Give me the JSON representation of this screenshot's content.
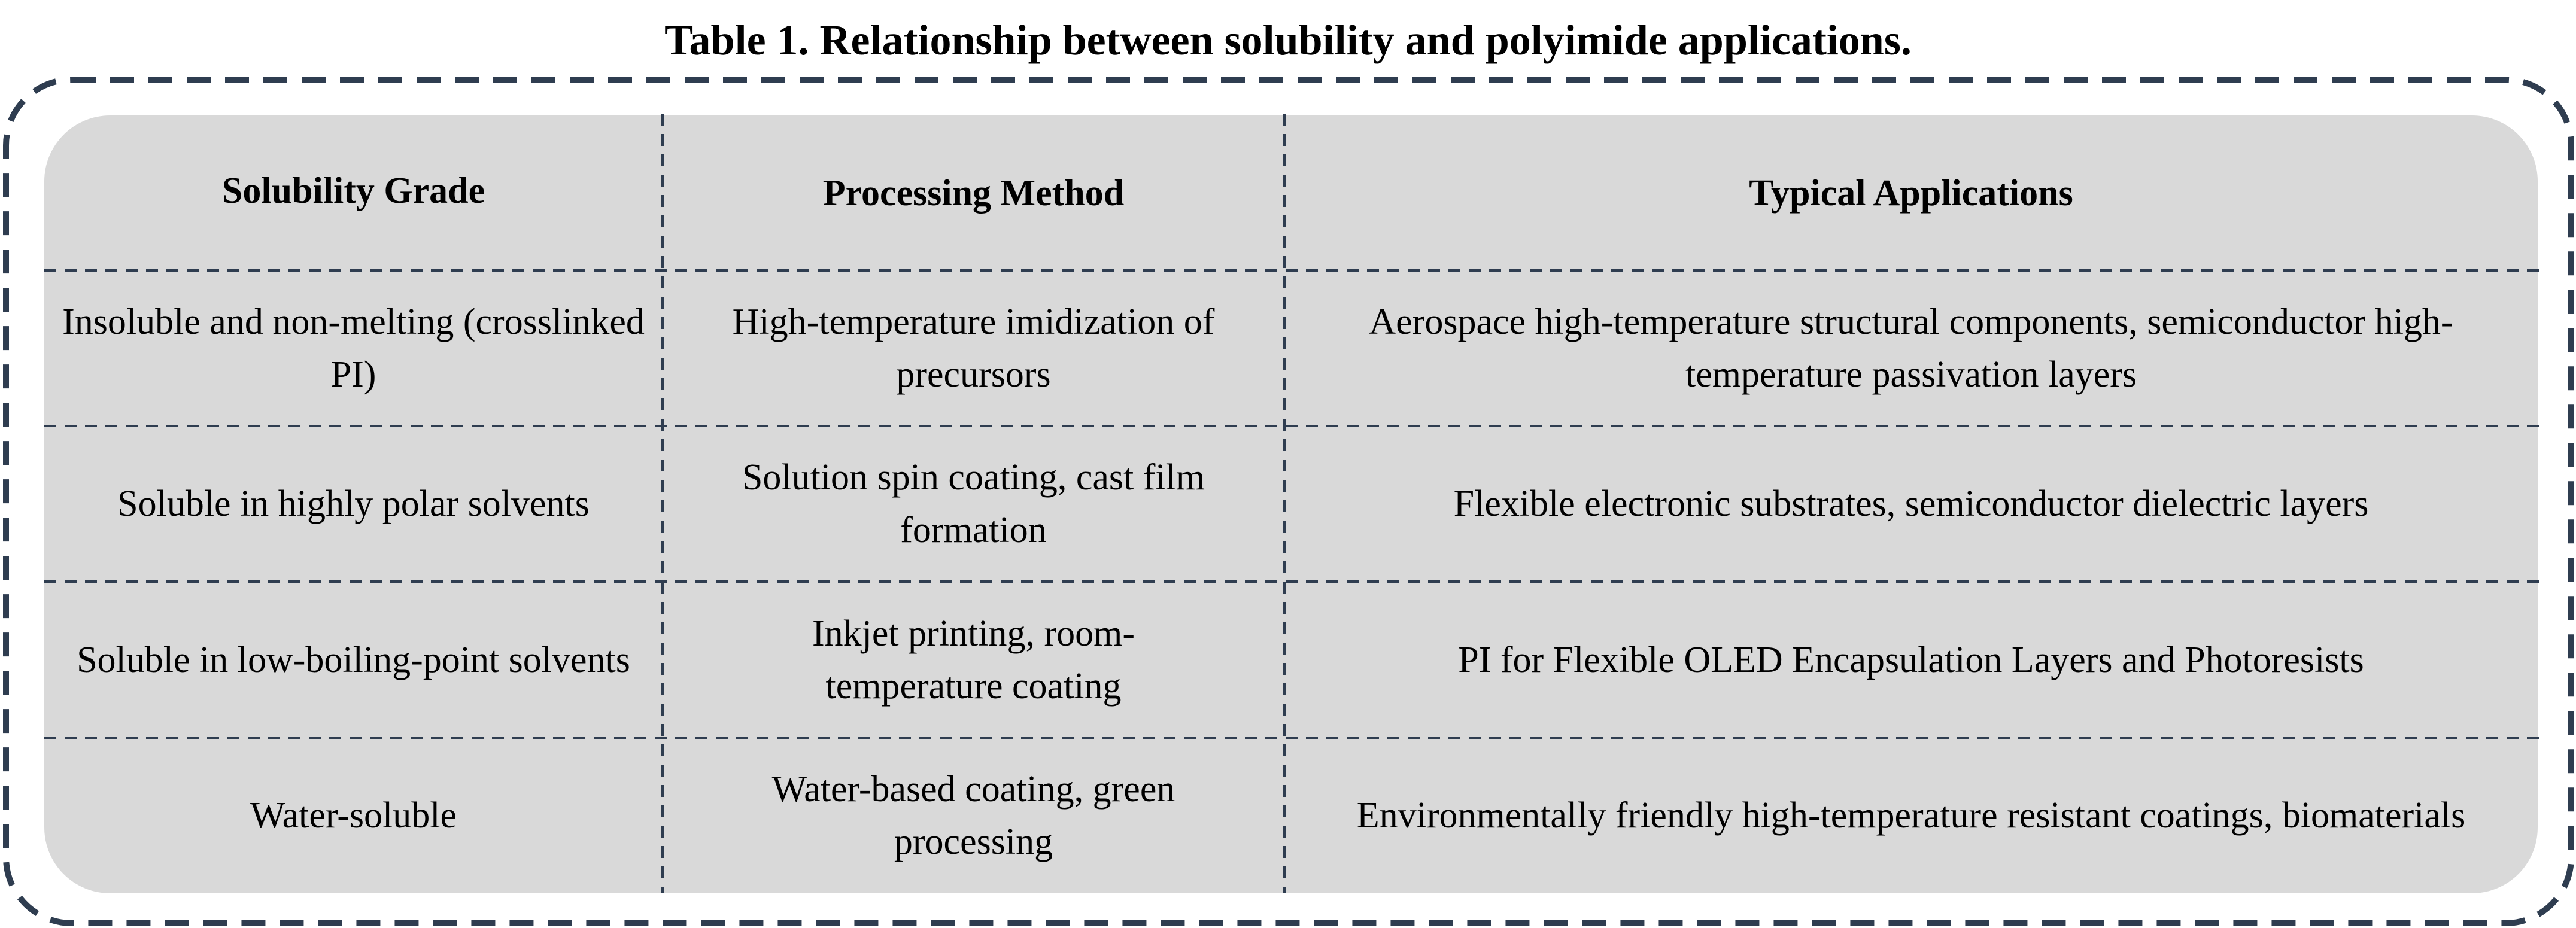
{
  "title": "Table 1. Relationship between solubility and polyimide applications.",
  "colors": {
    "panel": "#d9d9d9",
    "border": "#2f3d50"
  },
  "table": {
    "headers": [
      "Solubility Grade",
      "Processing Method",
      "Typical Applications"
    ],
    "rows": [
      [
        "Insoluble and non-melting (crosslinked PI)",
        "High-temperature imidization of precursors",
        "Aerospace high-temperature structural components, semiconductor high-temperature passivation layers"
      ],
      [
        "Soluble in highly polar solvents",
        "Solution spin coating, cast film formation",
        "Flexible electronic substrates, semiconductor dielectric layers"
      ],
      [
        "Soluble in low-boiling-point solvents",
        "Inkjet printing, room-temperature coating",
        "PI for Flexible OLED Encapsulation Layers and Photoresists"
      ],
      [
        "Water-soluble",
        "Water-based coating, green processing",
        "Environmentally friendly high-temperature resistant coatings, biomaterials"
      ]
    ]
  }
}
